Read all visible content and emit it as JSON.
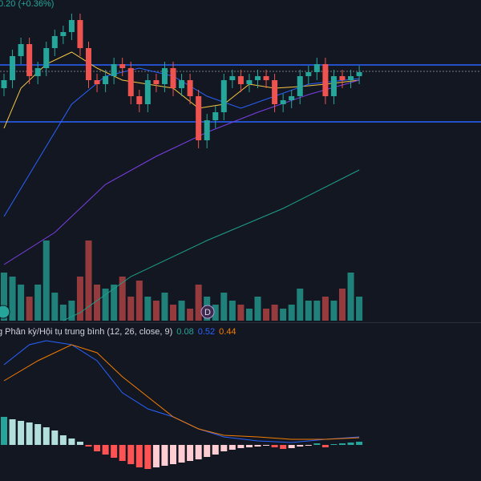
{
  "header": {
    "change": "0.20 (+0.36%)"
  },
  "macd_legend": {
    "label": "g Phân kỳ/Hội tụ trung bình (12, 26, close, 9)",
    "values": [
      {
        "value": 0.08,
        "color": "#26a69a"
      },
      {
        "value": 0.52,
        "color": "#2962ff"
      },
      {
        "value": 0.44,
        "color": "#f57c00"
      }
    ]
  },
  "badge": "D",
  "chart_data": [
    {
      "type": "candlestick",
      "ylim": [
        0,
        400
      ],
      "up_color": "#26a69a",
      "down_color": "#ef5350",
      "open": [
        290,
        300,
        330,
        345,
        305,
        315,
        340,
        355,
        360,
        375,
        340,
        300,
        295,
        305,
        320,
        315,
        280,
        270,
        300,
        295,
        315,
        290,
        300,
        280,
        225,
        250,
        260,
        300,
        305,
        295,
        300,
        305,
        300,
        270,
        275,
        280,
        305,
        310,
        320,
        280,
        305,
        300,
        305
      ],
      "high": [
        308,
        338,
        353,
        353,
        323,
        348,
        363,
        368,
        383,
        383,
        348,
        308,
        313,
        328,
        328,
        323,
        288,
        308,
        308,
        323,
        323,
        308,
        308,
        288,
        258,
        268,
        308,
        313,
        313,
        308,
        313,
        313,
        308,
        283,
        288,
        313,
        318,
        328,
        328,
        313,
        313,
        313,
        318
      ],
      "low": [
        280,
        290,
        320,
        295,
        295,
        305,
        330,
        345,
        350,
        330,
        290,
        285,
        285,
        295,
        305,
        270,
        260,
        260,
        285,
        285,
        280,
        280,
        270,
        215,
        215,
        240,
        250,
        290,
        285,
        285,
        290,
        290,
        260,
        260,
        265,
        270,
        295,
        300,
        270,
        270,
        290,
        290,
        295
      ],
      "close": [
        300,
        330,
        345,
        305,
        315,
        340,
        355,
        360,
        375,
        340,
        300,
        295,
        305,
        320,
        315,
        280,
        270,
        300,
        295,
        315,
        290,
        300,
        280,
        225,
        250,
        260,
        300,
        305,
        295,
        300,
        305,
        300,
        270,
        275,
        280,
        305,
        310,
        320,
        280,
        305,
        300,
        305,
        310
      ],
      "lines": [
        {
          "color": "#f5c542",
          "x": [
            0,
            2,
            5,
            8,
            11,
            14,
            17,
            20,
            23,
            26,
            29,
            32,
            35,
            38,
            42
          ],
          "values": [
            240,
            290,
            320,
            335,
            315,
            300,
            295,
            290,
            265,
            270,
            295,
            290,
            292,
            295,
            300
          ]
        },
        {
          "color": "#2962ff",
          "x": [
            0,
            4,
            8,
            12,
            16,
            20,
            24,
            28,
            32,
            36,
            42
          ],
          "values": [
            130,
            200,
            270,
            305,
            315,
            305,
            280,
            265,
            280,
            295,
            302
          ]
        },
        {
          "color": "#7b3fe4",
          "x": [
            0,
            6,
            12,
            18,
            24,
            30,
            36,
            42
          ],
          "values": [
            70,
            110,
            170,
            205,
            235,
            260,
            282,
            300
          ]
        },
        {
          "color": "#1e9e8a",
          "x": [
            7,
            9,
            15,
            24,
            33,
            42
          ],
          "values": [
            0,
            10,
            55,
            100,
            140,
            188
          ]
        }
      ],
      "hlines": [
        {
          "value": 319,
          "color": "#2962ff",
          "dash": false
        },
        {
          "value": 248,
          "color": "#2962ff",
          "dash": false
        },
        {
          "value": 311,
          "color": "#787b86",
          "dash": true
        }
      ]
    },
    {
      "type": "volume",
      "ylim": [
        0,
        110
      ],
      "up_color": "rgba(38,166,154,0.75)",
      "down_color": "rgba(239,83,80,0.6)",
      "values": [
        60,
        55,
        45,
        30,
        45,
        100,
        35,
        20,
        25,
        55,
        100,
        45,
        40,
        45,
        55,
        30,
        50,
        30,
        25,
        35,
        20,
        25,
        15,
        45,
        30,
        20,
        35,
        25,
        20,
        15,
        30,
        15,
        20,
        15,
        20,
        40,
        25,
        25,
        30,
        25,
        40,
        60,
        30
      ]
    },
    {
      "type": "macd",
      "ylim": [
        -45,
        150
      ],
      "histogram": [
        35,
        32,
        30,
        28,
        26,
        22,
        18,
        12,
        8,
        4,
        -2,
        -8,
        -12,
        -16,
        -20,
        -24,
        -28,
        -30,
        -28,
        -26,
        -24,
        -22,
        -20,
        -18,
        -15,
        -12,
        -8,
        -6,
        -4,
        -3,
        -2,
        -1,
        -3,
        -5,
        -4,
        -2,
        -1,
        2,
        -3,
        1,
        2,
        3,
        4
      ],
      "hist_colors": {
        "pos_up": "#26a69a",
        "pos_down": "#b2dfdb",
        "neg_down": "#ff5252",
        "neg_up": "#ffcdd2"
      },
      "series": [
        {
          "color": "#2962ff",
          "x": [
            0,
            3,
            5,
            8,
            11,
            14,
            17,
            20,
            23,
            26,
            30,
            34,
            38,
            42
          ],
          "values": [
            100,
            125,
            130,
            125,
            105,
            65,
            45,
            35,
            20,
            10,
            5,
            3,
            7,
            10
          ]
        },
        {
          "color": "#f57c00",
          "x": [
            0,
            4,
            8,
            11,
            14,
            17,
            20,
            23,
            26,
            30,
            34,
            38,
            42
          ],
          "values": [
            80,
            105,
            125,
            115,
            85,
            60,
            35,
            20,
            12,
            10,
            7,
            7,
            9
          ]
        }
      ]
    }
  ]
}
